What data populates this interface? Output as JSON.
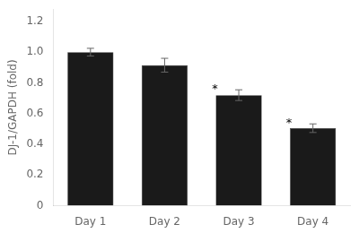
{
  "chart_data": {
    "type": "bar",
    "categories": [
      "Day 1",
      "Day 2",
      "Day 3",
      "Day 4"
    ],
    "values": [
      1.0,
      0.915,
      0.72,
      0.505
    ],
    "errors": [
      0.025,
      0.045,
      0.035,
      0.028
    ],
    "color": "#1a1a1a",
    "ylabel": "DJ-1/GAPDH (fold)",
    "ylim": [
      0,
      1.28
    ],
    "yticks": [
      0,
      0.2,
      0.4,
      0.6,
      {
        "value": 0.8,
        "label": "0.8"
      },
      {
        "value": 1.0,
        "label": "1.0"
      },
      1.2
    ],
    "grid": false,
    "annotations": [
      {
        "text": "*",
        "category": "Day 3"
      },
      {
        "text": "*",
        "category": "Day 4"
      }
    ]
  }
}
